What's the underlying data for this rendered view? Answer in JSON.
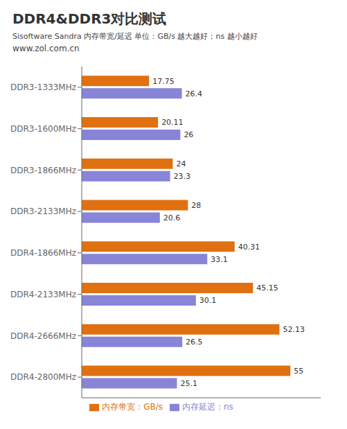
{
  "chart_data": {
    "type": "bar",
    "orientation": "horizontal",
    "title": "DDR4&DDR3对比测试",
    "subtitle": "Sisoftware Sandra 内存带宽/延迟   单位：GB/s 越大越好；ns 越小越好",
    "annotations": [
      "www.zol.com.cn"
    ],
    "categories": [
      "DDR3-1333MHz",
      "DDR3-1600MHz",
      "DDR3-1866MHz",
      "DDR3-2133MHz",
      "DDR4-1866MHz",
      "DDR4-2133MHz",
      "DDR4-2666MHz",
      "DDR4-2800MHz"
    ],
    "series": [
      {
        "name": "内存带宽：GB/s",
        "color": "#E07010",
        "values": [
          17.75,
          20.11,
          24,
          28,
          40.31,
          45.15,
          52.13,
          55
        ]
      },
      {
        "name": "内存延迟：ns",
        "color": "#8884d8",
        "values": [
          26.4,
          26,
          23.3,
          20.6,
          33.1,
          30.1,
          26.5,
          25.1
        ]
      }
    ],
    "xlim": [
      0,
      63
    ],
    "data_labels": true,
    "tick_labels": "y",
    "grid": false,
    "legend": "bottom"
  }
}
